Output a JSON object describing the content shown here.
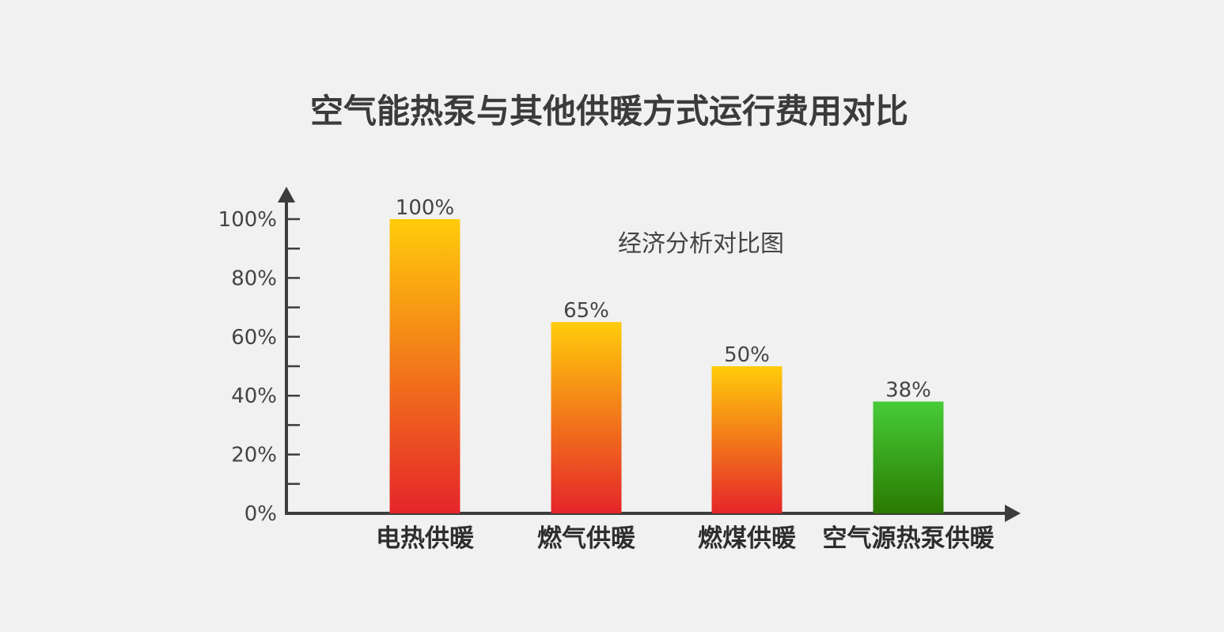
{
  "chart_data": {
    "type": "bar",
    "title": "空气能热泵与其他供暖方式运行费用对比",
    "subtitle": "经济分析对比图",
    "categories": [
      "电热供暖",
      "燃气供暖",
      "燃煤供暖",
      "空气源热泵供暖"
    ],
    "values": [
      100,
      65,
      50,
      38
    ],
    "value_labels": [
      "100%",
      "65%",
      "50%",
      "38%"
    ],
    "y_ticks": [
      0,
      20,
      40,
      60,
      80,
      100
    ],
    "y_tick_labels": [
      "0%",
      "20%",
      "40%",
      "60%",
      "80%",
      "100%"
    ],
    "ylim": [
      0,
      100
    ],
    "grid": false,
    "colors": {
      "warm_top": "#ffcc0a",
      "warm_bottom": "#e5252a",
      "green_top": "#47cc38",
      "green_bottom": "#2a7a00",
      "axis": "#3d3d3d"
    },
    "highlight_index": 3
  }
}
